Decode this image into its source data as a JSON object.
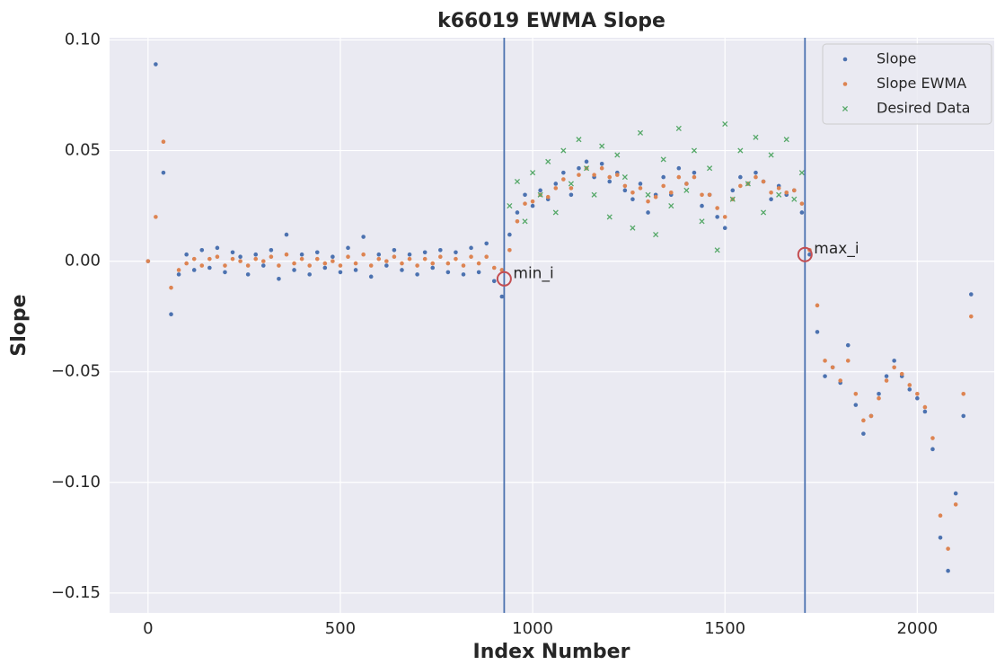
{
  "chart_data": {
    "type": "scatter",
    "title": "k66019 EWMA Slope",
    "x_label": "Index Number",
    "y_label": "Slope",
    "xlim": [
      -100,
      2200
    ],
    "ylim": [
      -0.159,
      0.101
    ],
    "xticks": [
      0,
      500,
      1000,
      1500,
      2000
    ],
    "yticks": [
      {
        "value": 0.1,
        "label": "0.10"
      },
      {
        "value": 0.05,
        "label": "0.05"
      },
      {
        "value": 0,
        "label": "0.00"
      },
      {
        "value": -0.05,
        "label": "−0.05"
      },
      {
        "value": -0.1,
        "label": "−0.10"
      },
      {
        "value": -0.15,
        "label": "−0.15"
      }
    ],
    "grid": true,
    "legend": "upper right",
    "vlines": [
      926,
      1708
    ],
    "vline_color": "#4c72b0",
    "annotations": [
      {
        "text": "min_i",
        "x": 926,
        "y": -0.008
      },
      {
        "text": "max_i",
        "x": 1708,
        "y": 0.003
      }
    ],
    "annotation_color": "#c44e52",
    "series": [
      {
        "name": "Slope",
        "color": "#4c72b0",
        "marker": "dot",
        "x": [
          0,
          20,
          40,
          60,
          80,
          100,
          120,
          140,
          160,
          180,
          200,
          220,
          240,
          260,
          280,
          300,
          320,
          340,
          360,
          380,
          400,
          420,
          440,
          460,
          480,
          500,
          520,
          540,
          560,
          580,
          600,
          620,
          640,
          660,
          680,
          700,
          720,
          740,
          760,
          780,
          800,
          820,
          840,
          860,
          880,
          900,
          920,
          940,
          960,
          980,
          1000,
          1020,
          1040,
          1060,
          1080,
          1100,
          1120,
          1140,
          1160,
          1180,
          1200,
          1220,
          1240,
          1260,
          1280,
          1300,
          1320,
          1340,
          1360,
          1380,
          1400,
          1420,
          1440,
          1460,
          1480,
          1500,
          1520,
          1540,
          1560,
          1580,
          1600,
          1620,
          1640,
          1660,
          1680,
          1700,
          1720,
          1740,
          1760,
          1780,
          1800,
          1820,
          1840,
          1860,
          1880,
          1900,
          1920,
          1940,
          1960,
          1980,
          2000,
          2020,
          2040,
          2060,
          2080,
          2100,
          2120,
          2140
        ],
        "values": [
          0,
          0.089,
          0.04,
          -0.024,
          -0.006,
          0.003,
          -0.004,
          0.005,
          -0.003,
          0.006,
          -0.005,
          0.004,
          0.002,
          -0.006,
          0.003,
          -0.002,
          0.005,
          -0.008,
          0.012,
          -0.004,
          0.003,
          -0.006,
          0.004,
          -0.003,
          0.002,
          -0.005,
          0.006,
          -0.004,
          0.011,
          -0.007,
          0.003,
          -0.002,
          0.005,
          -0.004,
          0.003,
          -0.006,
          0.004,
          -0.003,
          0.005,
          -0.005,
          0.004,
          -0.006,
          0.006,
          -0.005,
          0.008,
          -0.009,
          -0.016,
          0.012,
          0.022,
          0.03,
          0.025,
          0.032,
          0.028,
          0.035,
          0.04,
          0.03,
          0.042,
          0.045,
          0.038,
          0.044,
          0.036,
          0.04,
          0.032,
          0.028,
          0.035,
          0.022,
          0.03,
          0.038,
          0.03,
          0.042,
          0.035,
          0.04,
          0.025,
          0.03,
          0.02,
          0.015,
          0.032,
          0.038,
          0.035,
          0.04,
          0.036,
          0.028,
          0.034,
          0.03,
          0.032,
          0.022,
          0.003,
          -0.032,
          -0.052,
          -0.048,
          -0.055,
          -0.038,
          -0.065,
          -0.078,
          -0.07,
          -0.06,
          -0.052,
          -0.045,
          -0.052,
          -0.058,
          -0.062,
          -0.068,
          -0.085,
          -0.125,
          -0.14,
          -0.105,
          -0.07,
          -0.015
        ]
      },
      {
        "name": "Slope EWMA",
        "color": "#dd8452",
        "marker": "dot",
        "x": [
          0,
          20,
          40,
          60,
          80,
          100,
          120,
          140,
          160,
          180,
          200,
          220,
          240,
          260,
          280,
          300,
          320,
          340,
          360,
          380,
          400,
          420,
          440,
          460,
          480,
          500,
          520,
          540,
          560,
          580,
          600,
          620,
          640,
          660,
          680,
          700,
          720,
          740,
          760,
          780,
          800,
          820,
          840,
          860,
          880,
          900,
          920,
          940,
          960,
          980,
          1000,
          1020,
          1040,
          1060,
          1080,
          1100,
          1120,
          1140,
          1160,
          1180,
          1200,
          1220,
          1240,
          1260,
          1280,
          1300,
          1320,
          1340,
          1360,
          1380,
          1400,
          1420,
          1440,
          1460,
          1480,
          1500,
          1520,
          1540,
          1560,
          1580,
          1600,
          1620,
          1640,
          1660,
          1680,
          1700,
          1720,
          1740,
          1760,
          1780,
          1800,
          1820,
          1840,
          1860,
          1880,
          1900,
          1920,
          1940,
          1960,
          1980,
          2000,
          2020,
          2040,
          2060,
          2080,
          2100,
          2120,
          2140
        ],
        "values": [
          0,
          0.02,
          0.054,
          -0.012,
          -0.004,
          -0.001,
          0.001,
          -0.002,
          0.001,
          0.002,
          -0.002,
          0.001,
          0,
          -0.002,
          0.001,
          0,
          0.002,
          -0.002,
          0.003,
          -0.001,
          0.001,
          -0.002,
          0.001,
          -0.001,
          0,
          -0.002,
          0.002,
          -0.001,
          0.003,
          -0.002,
          0.001,
          0,
          0.002,
          -0.001,
          0.001,
          -0.002,
          0.001,
          -0.001,
          0.002,
          -0.001,
          0.001,
          -0.002,
          0.002,
          -0.001,
          0.002,
          -0.003,
          -0.004,
          0.005,
          0.018,
          0.026,
          0.027,
          0.03,
          0.029,
          0.033,
          0.037,
          0.033,
          0.039,
          0.042,
          0.039,
          0.042,
          0.038,
          0.039,
          0.034,
          0.031,
          0.033,
          0.027,
          0.029,
          0.034,
          0.031,
          0.038,
          0.035,
          0.038,
          0.03,
          0.03,
          0.024,
          0.02,
          0.028,
          0.034,
          0.035,
          0.038,
          0.036,
          0.031,
          0.033,
          0.031,
          0.032,
          0.026,
          0.005,
          -0.02,
          -0.045,
          -0.048,
          -0.054,
          -0.045,
          -0.06,
          -0.072,
          -0.07,
          -0.062,
          -0.054,
          -0.048,
          -0.051,
          -0.056,
          -0.06,
          -0.066,
          -0.08,
          -0.115,
          -0.13,
          -0.11,
          -0.06,
          -0.025
        ]
      },
      {
        "name": "Desired Data",
        "color": "#55a868",
        "marker": "x",
        "x": [
          940,
          960,
          980,
          1000,
          1020,
          1040,
          1060,
          1080,
          1100,
          1120,
          1140,
          1160,
          1180,
          1200,
          1220,
          1240,
          1260,
          1280,
          1300,
          1320,
          1340,
          1360,
          1380,
          1400,
          1420,
          1440,
          1460,
          1480,
          1500,
          1520,
          1540,
          1560,
          1580,
          1600,
          1620,
          1640,
          1660,
          1680,
          1700
        ],
        "values": [
          0.025,
          0.036,
          0.018,
          0.04,
          0.03,
          0.045,
          0.022,
          0.05,
          0.035,
          0.055,
          0.042,
          0.03,
          0.052,
          0.02,
          0.048,
          0.038,
          0.015,
          0.058,
          0.03,
          0.012,
          0.046,
          0.025,
          0.06,
          0.032,
          0.05,
          0.018,
          0.042,
          0.005,
          0.062,
          0.028,
          0.05,
          0.035,
          0.056,
          0.022,
          0.048,
          0.03,
          0.055,
          0.028,
          0.04
        ]
      }
    ]
  }
}
